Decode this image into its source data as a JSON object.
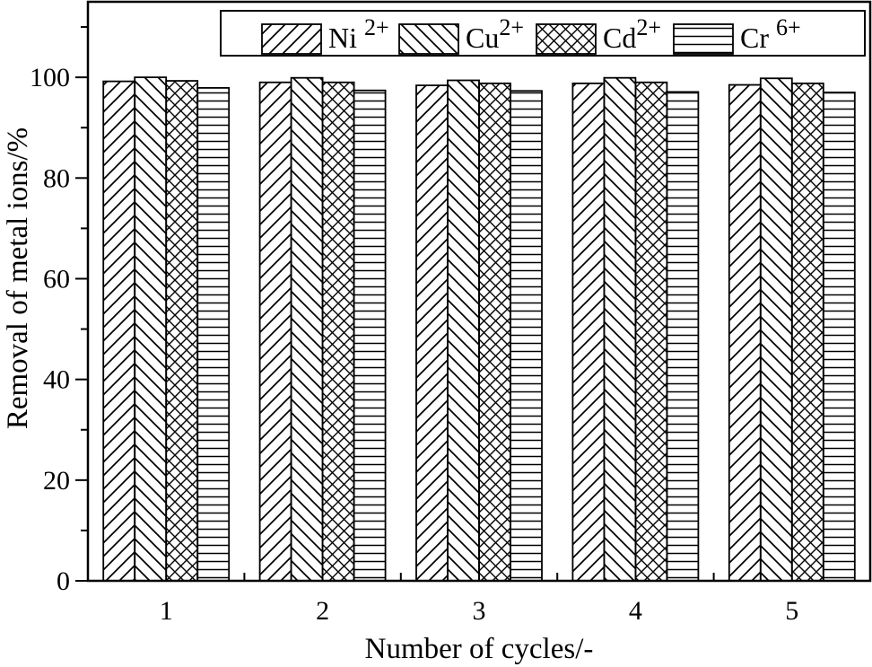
{
  "figure": {
    "background": "#ffffff",
    "line_color": "#000000",
    "bar_fill": "#ffffff"
  },
  "chart_data": {
    "type": "bar",
    "title": "",
    "xlabel": "Number of cycles/-",
    "ylabel": "Removal of metal ions/%",
    "categories": [
      "1",
      "2",
      "3",
      "4",
      "5"
    ],
    "series": [
      {
        "name": "Ni ",
        "sup": "2+",
        "hatch": "diagonal-forward",
        "values": [
          99.2,
          99.0,
          98.4,
          98.8,
          98.5
        ]
      },
      {
        "name": "Cu",
        "sup": "2+",
        "hatch": "diagonal-backward",
        "values": [
          100.0,
          99.9,
          99.4,
          99.9,
          99.8
        ]
      },
      {
        "name": "Cd",
        "sup": "2+",
        "hatch": "crosshatch",
        "values": [
          99.3,
          99.0,
          98.8,
          99.0,
          98.8
        ]
      },
      {
        "name": "Cr ",
        "sup": "6+",
        "hatch": "horizontal",
        "values": [
          97.9,
          97.4,
          97.3,
          97.1,
          97.0
        ]
      }
    ],
    "ylim": [
      0,
      115
    ],
    "yticks_major": [
      0,
      20,
      40,
      60,
      80,
      100
    ],
    "yticks_minor": [
      10,
      30,
      50,
      70,
      90,
      110
    ],
    "grid": false,
    "legend_position": "top-inside"
  }
}
